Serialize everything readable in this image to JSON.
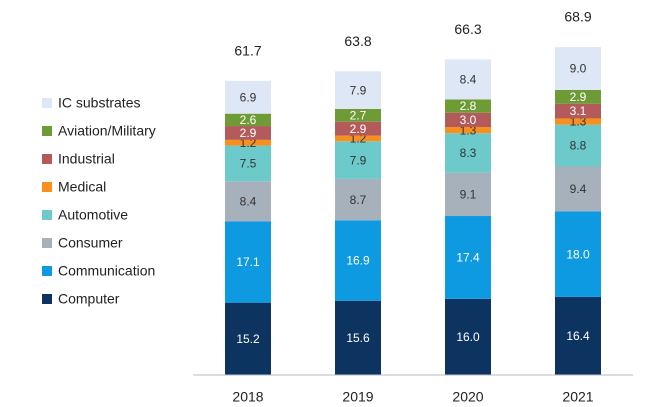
{
  "chart_data": {
    "type": "stacked-bar",
    "categories": [
      "2018",
      "2019",
      "2020",
      "2021"
    ],
    "series": [
      {
        "name": "Computer",
        "color": "#0d3461",
        "values": [
          15.2,
          15.6,
          16.0,
          16.4
        ],
        "value_labels": [
          "15.2",
          "15.6",
          "16.0",
          "16.4"
        ]
      },
      {
        "name": "Communication",
        "color": "#0e9ae0",
        "values": [
          17.1,
          16.9,
          17.4,
          18.0
        ],
        "value_labels": [
          "17.1",
          "16.9",
          "17.4",
          "18.0"
        ]
      },
      {
        "name": "Consumer",
        "color": "#a7b1bc",
        "values": [
          8.4,
          8.7,
          9.1,
          9.4
        ],
        "value_labels": [
          "8.4",
          "8.7",
          "9.1",
          "9.4"
        ]
      },
      {
        "name": "Automotive",
        "color": "#6dcaca",
        "values": [
          7.5,
          7.9,
          8.3,
          8.8
        ],
        "value_labels": [
          "7.5",
          "7.9",
          "8.3",
          "8.8"
        ]
      },
      {
        "name": "Medical",
        "color": "#f7901e",
        "values": [
          1.2,
          1.2,
          1.3,
          1.3
        ],
        "value_labels": [
          "1.2",
          "1.2",
          "1.3",
          "1.3"
        ]
      },
      {
        "name": "Industrial",
        "color": "#b35b5b",
        "values": [
          2.9,
          2.9,
          3.0,
          3.1
        ],
        "value_labels": [
          "2.9",
          "2.9",
          "3.0",
          "3.1"
        ]
      },
      {
        "name": "Aviation/Military",
        "color": "#6f9b36",
        "values": [
          2.6,
          2.7,
          2.8,
          2.9
        ],
        "value_labels": [
          "2.6",
          "2.7",
          "2.8",
          "2.9"
        ]
      },
      {
        "name": "IC substrates",
        "color": "#dde7f6",
        "values": [
          6.9,
          7.9,
          8.4,
          9.0
        ],
        "value_labels": [
          "6.9",
          "7.9",
          "8.4",
          "9.0"
        ]
      }
    ],
    "totals": [
      61.7,
      63.8,
      66.3,
      68.9
    ],
    "ylim": [
      0,
      75
    ]
  }
}
